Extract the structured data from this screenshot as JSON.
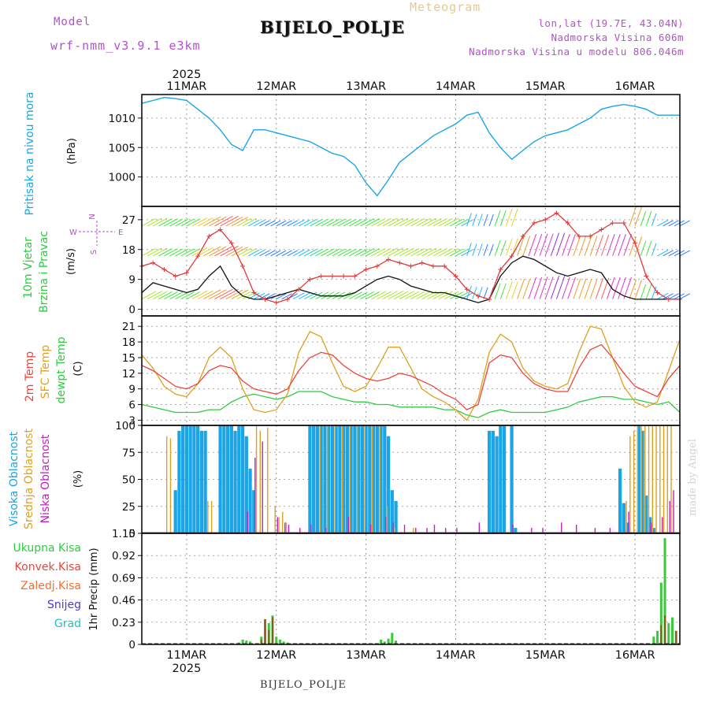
{
  "header": {
    "model_label": "Model",
    "model_name": "wrf-nmm_v3.9.1  e3km",
    "meteogram_label": "Meteogram",
    "station": "BIJELO_POLJE",
    "lonlat": "lon,lat (19.7E, 43.04N)",
    "altitude": "Nadmorska Visina 606m",
    "model_altitude": "Nadmorska Visina u modelu 806.046m"
  },
  "footer": {
    "station": "BIJELO_POLJE",
    "credit": "made by Angel"
  },
  "colors": {
    "pressure": "#1aa5e6",
    "wind_speed": "#e03a3a",
    "wind_mean": "#111111",
    "t2m": "#e8463c",
    "tsfc": "#e0a020",
    "dewpt": "#2ecc40",
    "cloud_high": "#1aa5e6",
    "cloud_mid": "#e0a020",
    "cloud_low": "#c020c0",
    "precip": "#3cc83c",
    "precip_conv": "#8b5a1a"
  },
  "chart_data": [
    {
      "type": "line",
      "panel": "pressure",
      "ylabel_1": "Pritisak na nivou mora",
      "ylabel_2": "(hPa)",
      "ylim": [
        995,
        1014
      ],
      "yticks": [
        1000,
        1005,
        1010
      ],
      "xdays": [
        "11MAR",
        "12MAR",
        "13MAR",
        "14MAR",
        "15MAR",
        "16MAR"
      ],
      "year": "2025",
      "xlim_hours": [
        -12,
        132
      ],
      "x": [
        -12,
        -9,
        -6,
        -3,
        0,
        3,
        6,
        9,
        12,
        15,
        18,
        21,
        24,
        27,
        30,
        33,
        36,
        39,
        42,
        45,
        48,
        51,
        54,
        57,
        60,
        63,
        66,
        69,
        72,
        75,
        78,
        81,
        84,
        87,
        90,
        93,
        96,
        99,
        102,
        105,
        108,
        111,
        114,
        117,
        120,
        123,
        126,
        129,
        132
      ],
      "values": [
        1012.5,
        1013.0,
        1013.5,
        1013.3,
        1013.0,
        1011.5,
        1010.0,
        1008.0,
        1005.5,
        1004.5,
        1008.0,
        1008.0,
        1007.5,
        1007.0,
        1006.5,
        1006.0,
        1005.0,
        1004.0,
        1003.5,
        1002.0,
        999.0,
        996.8,
        999.5,
        1002.5,
        1004.0,
        1005.5,
        1007.0,
        1008.0,
        1009.0,
        1010.5,
        1011.0,
        1007.5,
        1005.0,
        1003.0,
        1004.5,
        1006.0,
        1007.0,
        1007.5,
        1008.0,
        1009.0,
        1010.0,
        1011.5,
        1012.0,
        1012.3,
        1012.0,
        1011.5,
        1010.5,
        1010.5,
        1010.5
      ]
    },
    {
      "type": "line",
      "panel": "wind",
      "ylabel_1": "10m Vjetar",
      "ylabel_2": "Brzina i Pravac",
      "ylabel_3": "(m/s)",
      "compass": {
        "n": "N",
        "s": "S",
        "w": "W",
        "e": "E"
      },
      "ylim": [
        -2,
        31
      ],
      "yticks": [
        0,
        9,
        18,
        27
      ],
      "series": [
        {
          "name": "gust/speed",
          "x": [
            -12,
            -9,
            -6,
            -3,
            0,
            3,
            6,
            9,
            12,
            15,
            18,
            21,
            24,
            27,
            30,
            33,
            36,
            39,
            42,
            45,
            48,
            51,
            54,
            57,
            60,
            63,
            66,
            69,
            72,
            75,
            78,
            81,
            84,
            87,
            90,
            93,
            96,
            99,
            102,
            105,
            108,
            111,
            114,
            117,
            120,
            123,
            126,
            129,
            132
          ],
          "values": [
            13,
            14,
            12,
            10,
            11,
            16,
            22,
            24,
            20,
            13,
            5,
            3,
            2,
            3,
            6,
            9,
            10,
            10,
            10,
            10,
            12,
            13,
            15,
            14,
            13,
            14,
            13,
            13,
            10,
            6,
            4,
            3,
            12,
            16,
            22,
            26,
            27,
            29,
            26,
            22,
            22,
            24,
            26,
            26,
            20,
            10,
            5,
            3,
            3
          ]
        },
        {
          "name": "mean",
          "x": [
            -12,
            -9,
            -6,
            -3,
            0,
            3,
            6,
            9,
            12,
            15,
            18,
            21,
            24,
            27,
            30,
            33,
            36,
            39,
            42,
            45,
            48,
            51,
            54,
            57,
            60,
            63,
            66,
            69,
            72,
            75,
            78,
            81,
            84,
            87,
            90,
            93,
            96,
            99,
            102,
            105,
            108,
            111,
            114,
            117,
            120,
            123,
            126,
            129,
            132
          ],
          "values": [
            5,
            8,
            7,
            6,
            5,
            6,
            10,
            13,
            7,
            4,
            3,
            3,
            4,
            5,
            6,
            5,
            4,
            4,
            4,
            5,
            7,
            9,
            10,
            9,
            7,
            6,
            5,
            5,
            4,
            3,
            2,
            3,
            10,
            14,
            16,
            15,
            13,
            11,
            10,
            11,
            12,
            11,
            6,
            4,
            3,
            3,
            3,
            3,
            3
          ]
        }
      ]
    },
    {
      "type": "line",
      "panel": "temperature",
      "ylabel_1": "2m Temp",
      "ylabel_2": "SFC Temp",
      "ylabel_3": "dewpt Temp",
      "ylabel_4": "(C)",
      "ylim": [
        2,
        23
      ],
      "yticks": [
        3,
        6,
        9,
        12,
        15,
        18,
        21
      ],
      "series": [
        {
          "name": "2m Temp",
          "x": [
            -12,
            -9,
            -6,
            -3,
            0,
            3,
            6,
            9,
            12,
            15,
            18,
            21,
            24,
            27,
            30,
            33,
            36,
            39,
            42,
            45,
            48,
            51,
            54,
            57,
            60,
            63,
            66,
            69,
            72,
            75,
            78,
            81,
            84,
            87,
            90,
            93,
            96,
            99,
            102,
            105,
            108,
            111,
            114,
            117,
            120,
            123,
            126,
            129,
            132
          ],
          "values": [
            13.5,
            12.5,
            11.0,
            9.5,
            9.0,
            10.0,
            12.5,
            13.5,
            13.0,
            10.5,
            9.0,
            8.5,
            8.0,
            9.0,
            12.5,
            15.0,
            16.0,
            15.5,
            13.5,
            12.0,
            11.0,
            10.5,
            11.0,
            12.0,
            11.5,
            10.5,
            9.5,
            8.0,
            7.0,
            5.0,
            6.0,
            14.0,
            15.5,
            15.0,
            12.0,
            10.0,
            9.0,
            8.5,
            8.5,
            13.0,
            16.5,
            17.5,
            15.0,
            12.0,
            9.5,
            8.5,
            7.5,
            11.0,
            13.5
          ]
        },
        {
          "name": "SFC Temp",
          "x": [
            -12,
            -9,
            -6,
            -3,
            0,
            3,
            6,
            9,
            12,
            15,
            18,
            21,
            24,
            27,
            30,
            33,
            36,
            39,
            42,
            45,
            48,
            51,
            54,
            57,
            60,
            63,
            66,
            69,
            72,
            75,
            78,
            81,
            84,
            87,
            90,
            93,
            96,
            99,
            102,
            105,
            108,
            111,
            114,
            117,
            120,
            123,
            126,
            129,
            132
          ],
          "values": [
            15.5,
            13.0,
            9.5,
            8.0,
            7.5,
            10.0,
            15.0,
            17.0,
            15.0,
            9.0,
            5.0,
            4.5,
            5.0,
            8.0,
            16.0,
            20.0,
            19.0,
            14.0,
            9.5,
            8.5,
            9.5,
            13.0,
            17.0,
            17.0,
            13.0,
            9.0,
            7.5,
            6.5,
            5.0,
            3.0,
            7.0,
            16.0,
            19.5,
            18.0,
            13.0,
            10.5,
            9.5,
            9.0,
            10.0,
            16.0,
            21.0,
            20.5,
            15.0,
            9.5,
            6.5,
            5.5,
            6.5,
            12.5,
            18.5
          ]
        },
        {
          "name": "dewpt Temp",
          "x": [
            -12,
            -9,
            -6,
            -3,
            0,
            3,
            6,
            9,
            12,
            15,
            18,
            21,
            24,
            27,
            30,
            33,
            36,
            39,
            42,
            45,
            48,
            51,
            54,
            57,
            60,
            63,
            66,
            69,
            72,
            75,
            78,
            81,
            84,
            87,
            90,
            93,
            96,
            99,
            102,
            105,
            108,
            111,
            114,
            117,
            120,
            123,
            126,
            129,
            132
          ],
          "values": [
            6.0,
            5.5,
            5.0,
            4.5,
            4.5,
            4.5,
            5.0,
            5.0,
            6.5,
            7.5,
            8.0,
            7.5,
            7.0,
            7.5,
            8.5,
            8.5,
            8.5,
            7.5,
            7.0,
            6.5,
            6.5,
            6.0,
            6.0,
            5.5,
            5.5,
            5.5,
            5.5,
            5.0,
            5.0,
            4.0,
            3.5,
            4.5,
            5.0,
            4.5,
            4.5,
            4.5,
            4.5,
            5.0,
            5.5,
            6.5,
            7.0,
            7.5,
            7.5,
            7.0,
            7.0,
            6.5,
            6.0,
            6.5,
            4.5
          ]
        }
      ]
    },
    {
      "type": "bar",
      "panel": "clouds",
      "ylabel_1": "Visoka Oblacnost",
      "ylabel_2": "Srednja Oblacnost",
      "ylabel_3": "Niska Oblacnost",
      "ylabel_4": "(%)",
      "ylim": [
        0,
        100
      ],
      "yticks": [
        0,
        25,
        50,
        75,
        100
      ],
      "series": [
        {
          "name": "Visoka Oblacnost",
          "x": [
            -3,
            -2,
            -1,
            0,
            1,
            2,
            3,
            4,
            5,
            9,
            10,
            11,
            12,
            13,
            14,
            15,
            16,
            17,
            18,
            33,
            34,
            35,
            36,
            37,
            38,
            39,
            40,
            41,
            42,
            43,
            44,
            45,
            46,
            47,
            48,
            49,
            50,
            51,
            52,
            53,
            54,
            55,
            56,
            81,
            82,
            83,
            84,
            85,
            87,
            88,
            116,
            117,
            118,
            121,
            122,
            123,
            124,
            125
          ],
          "values": [
            40,
            95,
            100,
            100,
            100,
            100,
            100,
            95,
            95,
            100,
            100,
            100,
            100,
            95,
            100,
            100,
            90,
            60,
            40,
            100,
            100,
            100,
            100,
            100,
            100,
            100,
            100,
            100,
            100,
            100,
            100,
            100,
            100,
            100,
            100,
            100,
            100,
            100,
            100,
            100,
            90,
            40,
            30,
            95,
            95,
            90,
            100,
            100,
            100,
            5,
            60,
            28,
            10,
            100,
            95,
            35,
            15,
            5
          ]
        },
        {
          "name": "Srednja Oblacnost",
          "x": [
            -5,
            -4,
            6,
            7,
            19,
            20,
            22,
            24,
            25,
            26,
            27,
            36,
            38,
            40,
            42,
            44,
            46,
            48,
            50,
            52,
            54,
            56,
            61,
            118,
            119,
            120,
            121,
            122,
            123,
            124,
            125,
            126,
            127,
            128,
            129,
            130
          ],
          "values": [
            90,
            88,
            30,
            30,
            100,
            95,
            98,
            25,
            15,
            20,
            10,
            100,
            100,
            100,
            100,
            100,
            100,
            100,
            100,
            100,
            25,
            5,
            5,
            30,
            90,
            95,
            100,
            100,
            100,
            100,
            100,
            100,
            100,
            100,
            100,
            100
          ]
        },
        {
          "name": "Niska Oblacnost",
          "x": [
            16,
            18,
            20,
            24,
            26,
            27,
            30,
            33,
            37,
            43,
            49,
            53,
            55,
            58,
            61,
            64,
            66,
            69,
            72,
            78,
            87,
            92,
            95,
            100,
            104,
            109,
            113,
            118,
            124,
            127,
            129,
            130
          ],
          "values": [
            20,
            70,
            85,
            15,
            10,
            8,
            5,
            8,
            5,
            15,
            8,
            15,
            10,
            8,
            5,
            5,
            8,
            5,
            5,
            10,
            8,
            5,
            5,
            10,
            8,
            5,
            5,
            20,
            10,
            15,
            30,
            40
          ]
        }
      ]
    },
    {
      "type": "bar",
      "panel": "precip",
      "ylabel_1": "1hr Precip (mm)",
      "legend": [
        "Ukupna Kisa",
        "Konvek.Kisa",
        "Zaledj.Kisa",
        "Snijeg",
        "Grad"
      ],
      "ylim": [
        0,
        1.15
      ],
      "yticks": [
        0,
        0.23,
        0.46,
        0.69,
        0.92,
        1.15
      ],
      "series": [
        {
          "name": "Ukupna Kisa",
          "x": [
            14,
            15,
            16,
            17,
            20,
            21,
            22,
            23,
            24,
            25,
            26,
            27,
            52,
            53,
            54,
            55,
            56,
            125,
            126,
            127,
            128,
            129,
            130,
            131
          ],
          "values": [
            0.02,
            0.05,
            0.04,
            0.03,
            0.08,
            0.26,
            0.22,
            0.3,
            0.08,
            0.05,
            0.03,
            0.02,
            0.05,
            0.03,
            0.06,
            0.12,
            0.04,
            0.08,
            0.14,
            0.64,
            1.1,
            0.22,
            0.28,
            0.14
          ]
        },
        {
          "name": "Konvek.Kisa",
          "x": [
            20,
            21,
            22,
            23,
            127,
            128,
            131
          ],
          "values": [
            0.05,
            0.26,
            0.15,
            0.28,
            0.2,
            0.3,
            0.14
          ]
        }
      ]
    }
  ]
}
